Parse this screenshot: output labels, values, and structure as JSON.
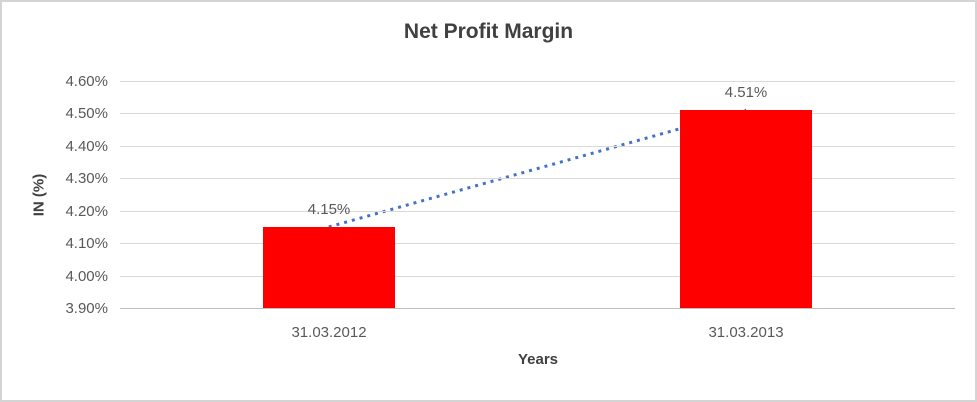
{
  "chart_data": {
    "type": "bar",
    "title": "Net Profit Margin",
    "categories": [
      "31.03.2012",
      "31.03.2013"
    ],
    "values": [
      4.15,
      4.51
    ],
    "data_labels": [
      "4.15%",
      "4.51%"
    ],
    "xlabel": "Years",
    "ylabel": "IN (%)",
    "ylim": [
      3.9,
      4.6
    ],
    "ytick_step": 0.1,
    "ytick_labels": [
      "3.90%",
      "4.00%",
      "4.10%",
      "4.20%",
      "4.30%",
      "4.40%",
      "4.50%",
      "4.60%"
    ],
    "grid": true,
    "legend": "none",
    "bar_color": "#ff0000",
    "gridline_color": "#d9d9d9",
    "axis_line_color": "#bfbfbf",
    "tick_text_color": "#595959",
    "title_text_color": "#404040",
    "trendline": {
      "type": "linear",
      "style": "dotted",
      "color": "#4472c4",
      "from_value": 4.15,
      "to_value": 4.51
    }
  }
}
